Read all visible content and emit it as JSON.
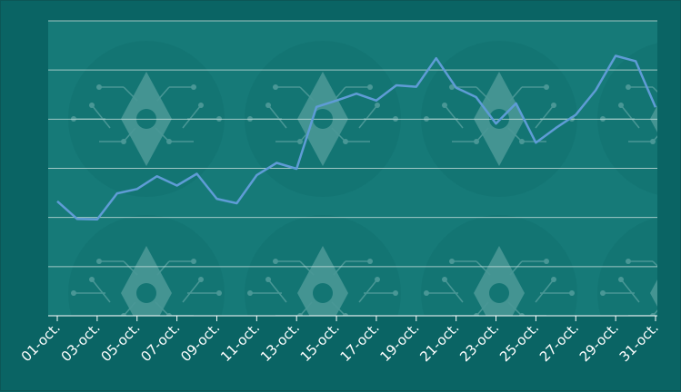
{
  "chart_data": {
    "type": "line",
    "title": "",
    "xlabel": "",
    "ylabel": "",
    "x": [
      "01-oct.",
      "02-oct.",
      "03-oct.",
      "04-oct.",
      "05-oct.",
      "06-oct.",
      "07-oct.",
      "08-oct.",
      "09-oct.",
      "10-oct.",
      "11-oct.",
      "12-oct.",
      "13-oct.",
      "14-oct.",
      "15-oct.",
      "16-oct.",
      "17-oct.",
      "18-oct.",
      "19-oct.",
      "20-oct.",
      "21-oct.",
      "22-oct.",
      "23-oct.",
      "24-oct.",
      "25-oct.",
      "26-oct.",
      "27-oct.",
      "28-oct.",
      "29-oct.",
      "30-oct.",
      "31-oct."
    ],
    "x_tick_labels": [
      "01-oct.",
      "03-oct.",
      "05-oct.",
      "07-oct.",
      "09-oct.",
      "11-oct.",
      "13-oct.",
      "15-oct.",
      "17-oct.",
      "19-oct.",
      "21-oct.",
      "23-oct.",
      "25-oct.",
      "27-oct.",
      "29-oct.",
      "31-oct."
    ],
    "series": [
      {
        "values": [
          2.33,
          1.97,
          1.96,
          2.49,
          2.58,
          2.84,
          2.65,
          2.89,
          2.38,
          2.29,
          2.86,
          3.11,
          2.99,
          4.25,
          4.38,
          4.52,
          4.38,
          4.69,
          4.66,
          5.24,
          4.64,
          4.45,
          3.91,
          4.32,
          3.52,
          3.82,
          4.09,
          4.59,
          5.29,
          5.18,
          4.24
        ]
      }
    ],
    "ylim": [
      0,
      6
    ],
    "y_gridlines": [
      0,
      1,
      2,
      3,
      4,
      5,
      6
    ],
    "y_tick_labels_shown": false,
    "grid": true,
    "legend": "none",
    "colors": {
      "background": "#0a6464",
      "plot_area": "#167a78",
      "line": "#5f9cd6",
      "grid": "#cfe3e1",
      "tick_label": "#ffffff"
    }
  }
}
